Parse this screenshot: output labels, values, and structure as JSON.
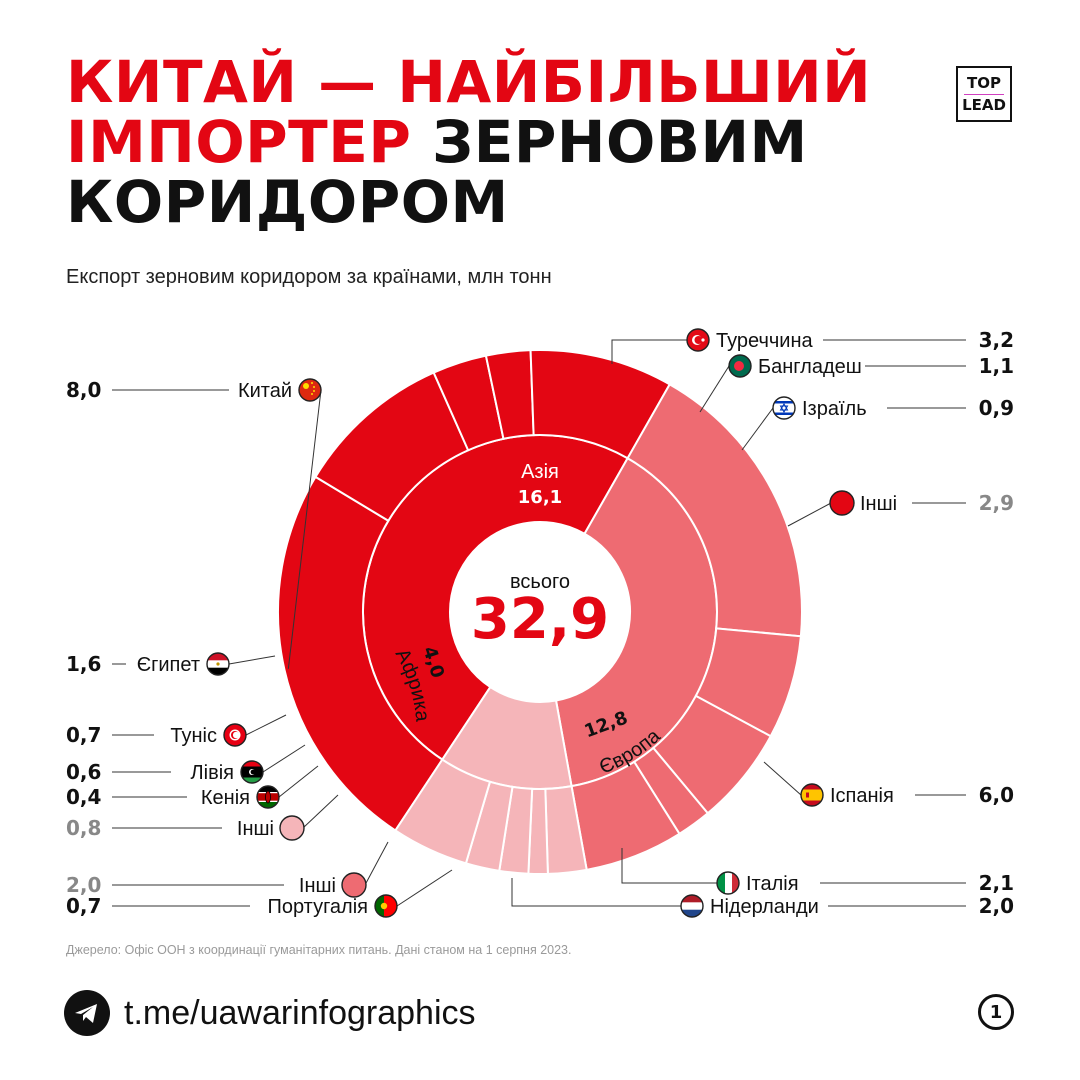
{
  "header": {
    "title_red": "КИТАЙ — НАЙБІЛЬШИЙ ІМПОРТЕР",
    "title_black": "ЗЕРНОВИМ КОРИДОРОМ",
    "subtitle": "Експорт зерновим коридором за країнами, млн тонн",
    "logo_top": "TOP",
    "logo_bottom": "LEAD"
  },
  "chart_data": {
    "type": "sunburst",
    "title": "КИТАЙ — НАЙБІЛЬШИЙ ІМПОРТЕР ЗЕРНОВИМ КОРИДОРОМ",
    "subtitle": "Експорт зерновим коридором за країнами, млн тонн",
    "total_label": "всього",
    "total": 32.9,
    "total_text": "32,9",
    "colors": {
      "Азія": "#e30613",
      "Європа": "#ee6b72",
      "Африка": "#f5b5b9"
    },
    "regions": [
      {
        "name": "Азія",
        "value": 16.1,
        "value_text": "16,1",
        "countries": [
          {
            "name": "Китай",
            "value": 8.0,
            "value_text": "8,0",
            "flag": "china-flag"
          },
          {
            "name": "Туреччина",
            "value": 3.2,
            "value_text": "3,2",
            "flag": "turkey-flag"
          },
          {
            "name": "Бангладеш",
            "value": 1.1,
            "value_text": "1,1",
            "flag": "bangladesh-flag"
          },
          {
            "name": "Ізраїль",
            "value": 0.9,
            "value_text": "0,9",
            "flag": "israel-flag"
          },
          {
            "name": "Інші",
            "value": 2.9,
            "value_text": "2,9",
            "other": true
          }
        ]
      },
      {
        "name": "Європа",
        "value": 12.8,
        "value_text": "12,8",
        "countries": [
          {
            "name": "Іспанія",
            "value": 6.0,
            "value_text": "6,0",
            "flag": "spain-flag"
          },
          {
            "name": "Італія",
            "value": 2.1,
            "value_text": "2,1",
            "flag": "italy-flag"
          },
          {
            "name": "Нідерланди",
            "value": 2.0,
            "value_text": "2,0",
            "flag": "netherlands-flag"
          },
          {
            "name": "Португалія",
            "value": 0.7,
            "value_text": "0,7",
            "flag": "portugal-flag"
          },
          {
            "name": "Інші",
            "value": 2.0,
            "value_text": "2,0",
            "other": true
          }
        ]
      },
      {
        "name": "Африка",
        "value": 4.0,
        "value_text": "4,0",
        "countries": [
          {
            "name": "Єгипет",
            "value": 1.6,
            "value_text": "1,6",
            "flag": "egypt-flag"
          },
          {
            "name": "Туніс",
            "value": 0.7,
            "value_text": "0,7",
            "flag": "tunisia-flag"
          },
          {
            "name": "Лівія",
            "value": 0.6,
            "value_text": "0,6",
            "flag": "libya-flag"
          },
          {
            "name": "Кенія",
            "value": 0.4,
            "value_text": "0,4",
            "flag": "kenya-flag"
          },
          {
            "name": "Інші",
            "value": 0.8,
            "value_text": "0,8",
            "other": true
          }
        ]
      }
    ]
  },
  "footer": {
    "source": "Джерело: Офіс ООН з координації гуманітарних питань. Дані станом на 1 серпня 2023.",
    "telegram_icon": "telegram-icon",
    "link": "t.me/uawarinfographics",
    "page_number": "1"
  }
}
